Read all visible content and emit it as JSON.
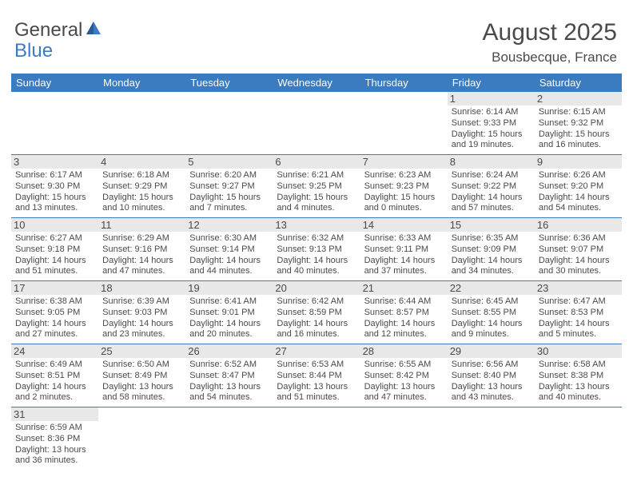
{
  "logo": {
    "part1": "General",
    "part2": "Blue"
  },
  "title": {
    "month": "August 2025",
    "location": "Bousbecque, France"
  },
  "colors": {
    "header_bg": "#3b7bbf",
    "daynum_bg": "#e8e8e8",
    "text": "#4a4a4a"
  },
  "dayHeaders": [
    "Sunday",
    "Monday",
    "Tuesday",
    "Wednesday",
    "Thursday",
    "Friday",
    "Saturday"
  ],
  "weeks": [
    [
      null,
      null,
      null,
      null,
      null,
      {
        "n": "1",
        "sr": "Sunrise: 6:14 AM",
        "ss": "Sunset: 9:33 PM",
        "d1": "Daylight: 15 hours",
        "d2": "and 19 minutes."
      },
      {
        "n": "2",
        "sr": "Sunrise: 6:15 AM",
        "ss": "Sunset: 9:32 PM",
        "d1": "Daylight: 15 hours",
        "d2": "and 16 minutes."
      }
    ],
    [
      {
        "n": "3",
        "sr": "Sunrise: 6:17 AM",
        "ss": "Sunset: 9:30 PM",
        "d1": "Daylight: 15 hours",
        "d2": "and 13 minutes."
      },
      {
        "n": "4",
        "sr": "Sunrise: 6:18 AM",
        "ss": "Sunset: 9:29 PM",
        "d1": "Daylight: 15 hours",
        "d2": "and 10 minutes."
      },
      {
        "n": "5",
        "sr": "Sunrise: 6:20 AM",
        "ss": "Sunset: 9:27 PM",
        "d1": "Daylight: 15 hours",
        "d2": "and 7 minutes."
      },
      {
        "n": "6",
        "sr": "Sunrise: 6:21 AM",
        "ss": "Sunset: 9:25 PM",
        "d1": "Daylight: 15 hours",
        "d2": "and 4 minutes."
      },
      {
        "n": "7",
        "sr": "Sunrise: 6:23 AM",
        "ss": "Sunset: 9:23 PM",
        "d1": "Daylight: 15 hours",
        "d2": "and 0 minutes."
      },
      {
        "n": "8",
        "sr": "Sunrise: 6:24 AM",
        "ss": "Sunset: 9:22 PM",
        "d1": "Daylight: 14 hours",
        "d2": "and 57 minutes."
      },
      {
        "n": "9",
        "sr": "Sunrise: 6:26 AM",
        "ss": "Sunset: 9:20 PM",
        "d1": "Daylight: 14 hours",
        "d2": "and 54 minutes."
      }
    ],
    [
      {
        "n": "10",
        "sr": "Sunrise: 6:27 AM",
        "ss": "Sunset: 9:18 PM",
        "d1": "Daylight: 14 hours",
        "d2": "and 51 minutes."
      },
      {
        "n": "11",
        "sr": "Sunrise: 6:29 AM",
        "ss": "Sunset: 9:16 PM",
        "d1": "Daylight: 14 hours",
        "d2": "and 47 minutes."
      },
      {
        "n": "12",
        "sr": "Sunrise: 6:30 AM",
        "ss": "Sunset: 9:14 PM",
        "d1": "Daylight: 14 hours",
        "d2": "and 44 minutes."
      },
      {
        "n": "13",
        "sr": "Sunrise: 6:32 AM",
        "ss": "Sunset: 9:13 PM",
        "d1": "Daylight: 14 hours",
        "d2": "and 40 minutes."
      },
      {
        "n": "14",
        "sr": "Sunrise: 6:33 AM",
        "ss": "Sunset: 9:11 PM",
        "d1": "Daylight: 14 hours",
        "d2": "and 37 minutes."
      },
      {
        "n": "15",
        "sr": "Sunrise: 6:35 AM",
        "ss": "Sunset: 9:09 PM",
        "d1": "Daylight: 14 hours",
        "d2": "and 34 minutes."
      },
      {
        "n": "16",
        "sr": "Sunrise: 6:36 AM",
        "ss": "Sunset: 9:07 PM",
        "d1": "Daylight: 14 hours",
        "d2": "and 30 minutes."
      }
    ],
    [
      {
        "n": "17",
        "sr": "Sunrise: 6:38 AM",
        "ss": "Sunset: 9:05 PM",
        "d1": "Daylight: 14 hours",
        "d2": "and 27 minutes."
      },
      {
        "n": "18",
        "sr": "Sunrise: 6:39 AM",
        "ss": "Sunset: 9:03 PM",
        "d1": "Daylight: 14 hours",
        "d2": "and 23 minutes."
      },
      {
        "n": "19",
        "sr": "Sunrise: 6:41 AM",
        "ss": "Sunset: 9:01 PM",
        "d1": "Daylight: 14 hours",
        "d2": "and 20 minutes."
      },
      {
        "n": "20",
        "sr": "Sunrise: 6:42 AM",
        "ss": "Sunset: 8:59 PM",
        "d1": "Daylight: 14 hours",
        "d2": "and 16 minutes."
      },
      {
        "n": "21",
        "sr": "Sunrise: 6:44 AM",
        "ss": "Sunset: 8:57 PM",
        "d1": "Daylight: 14 hours",
        "d2": "and 12 minutes."
      },
      {
        "n": "22",
        "sr": "Sunrise: 6:45 AM",
        "ss": "Sunset: 8:55 PM",
        "d1": "Daylight: 14 hours",
        "d2": "and 9 minutes."
      },
      {
        "n": "23",
        "sr": "Sunrise: 6:47 AM",
        "ss": "Sunset: 8:53 PM",
        "d1": "Daylight: 14 hours",
        "d2": "and 5 minutes."
      }
    ],
    [
      {
        "n": "24",
        "sr": "Sunrise: 6:49 AM",
        "ss": "Sunset: 8:51 PM",
        "d1": "Daylight: 14 hours",
        "d2": "and 2 minutes."
      },
      {
        "n": "25",
        "sr": "Sunrise: 6:50 AM",
        "ss": "Sunset: 8:49 PM",
        "d1": "Daylight: 13 hours",
        "d2": "and 58 minutes."
      },
      {
        "n": "26",
        "sr": "Sunrise: 6:52 AM",
        "ss": "Sunset: 8:47 PM",
        "d1": "Daylight: 13 hours",
        "d2": "and 54 minutes."
      },
      {
        "n": "27",
        "sr": "Sunrise: 6:53 AM",
        "ss": "Sunset: 8:44 PM",
        "d1": "Daylight: 13 hours",
        "d2": "and 51 minutes."
      },
      {
        "n": "28",
        "sr": "Sunrise: 6:55 AM",
        "ss": "Sunset: 8:42 PM",
        "d1": "Daylight: 13 hours",
        "d2": "and 47 minutes."
      },
      {
        "n": "29",
        "sr": "Sunrise: 6:56 AM",
        "ss": "Sunset: 8:40 PM",
        "d1": "Daylight: 13 hours",
        "d2": "and 43 minutes."
      },
      {
        "n": "30",
        "sr": "Sunrise: 6:58 AM",
        "ss": "Sunset: 8:38 PM",
        "d1": "Daylight: 13 hours",
        "d2": "and 40 minutes."
      }
    ],
    [
      {
        "n": "31",
        "sr": "Sunrise: 6:59 AM",
        "ss": "Sunset: 8:36 PM",
        "d1": "Daylight: 13 hours",
        "d2": "and 36 minutes."
      },
      null,
      null,
      null,
      null,
      null,
      null
    ]
  ]
}
